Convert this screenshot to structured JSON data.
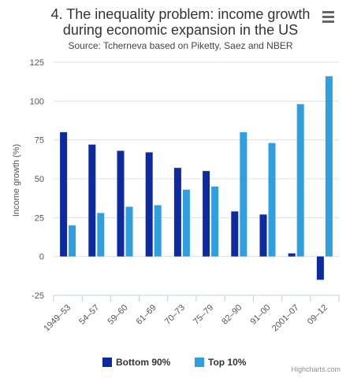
{
  "chart_data": {
    "type": "bar",
    "title_line1": "4. The inequality problem: income growth",
    "title_line2": "during economic expansion in the US",
    "subtitle": "Source: Tcherneva based on Piketty, Saez and NBER",
    "xlabel": "",
    "ylabel": "Income growth (%)",
    "ylim": [
      -25,
      125
    ],
    "yticks": [
      -25,
      0,
      25,
      50,
      75,
      100,
      125
    ],
    "grid": "horizontal",
    "legend": "bottom-center",
    "categories": [
      "1949–53",
      "54–57",
      "59–60",
      "61–69",
      "70–73",
      "75–79",
      "82–90",
      "91–00",
      "2001–07",
      "09–12"
    ],
    "series": [
      {
        "name": "Bottom 90%",
        "color": "#0d2a9e",
        "values": [
          80,
          72,
          68,
          67,
          57,
          55,
          29,
          27,
          2,
          -15
        ]
      },
      {
        "name": "Top 10%",
        "color": "#2f9fe0",
        "values": [
          20,
          28,
          32,
          33,
          43,
          45,
          80,
          73,
          98,
          116
        ]
      }
    ]
  },
  "credits": "Highcharts.com",
  "menu_icon": "hamburger-menu-icon"
}
